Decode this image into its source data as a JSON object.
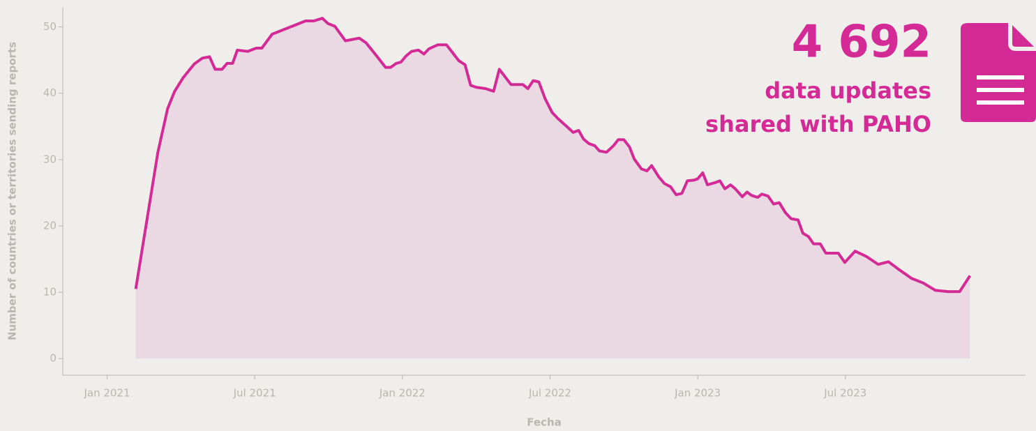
{
  "chart_data": {
    "type": "area",
    "y_label": "Number of countries or territories sending reports",
    "x_label": "Fecha",
    "annotations": [
      "4 692",
      "data updates",
      "shared with PAHO"
    ],
    "color": "#d42a96",
    "fill_color": "#ead8e2",
    "xlim": [
      2020.85,
      2024.11
    ],
    "ylim": [
      -2.5,
      53
    ],
    "xticks": [
      {
        "value": 2021.0,
        "label": "Jan 2021"
      },
      {
        "value": 2021.5,
        "label": "Jul 2021"
      },
      {
        "value": 2022.0,
        "label": "Jan 2022"
      },
      {
        "value": 2022.5,
        "label": "Jul 2022"
      },
      {
        "value": 2023.0,
        "label": "Jan 2023"
      },
      {
        "value": 2023.5,
        "label": "Jul 2023"
      }
    ],
    "yticks": [
      0,
      10,
      20,
      30,
      40,
      50
    ],
    "x": [
      2021.097,
      2021.172,
      2021.205,
      2021.229,
      2021.257,
      2021.295,
      2021.323,
      2021.347,
      2021.366,
      2021.389,
      2021.406,
      2021.425,
      2021.441,
      2021.476,
      2021.505,
      2021.524,
      2021.559,
      2021.672,
      2021.7,
      2021.729,
      2021.748,
      2021.771,
      2021.807,
      2021.83,
      2021.854,
      2021.877,
      2021.913,
      2021.943,
      2021.96,
      2021.979,
      2021.995,
      2022.012,
      2022.031,
      2022.054,
      2022.073,
      2022.09,
      2022.12,
      2022.149,
      2022.172,
      2022.191,
      2022.212,
      2022.231,
      2022.25,
      2022.281,
      2022.309,
      2022.328,
      2022.368,
      2022.408,
      2022.425,
      2022.443,
      2022.462,
      2022.483,
      2022.507,
      2022.526,
      2022.561,
      2022.578,
      2022.597,
      2022.613,
      2022.632,
      2022.651,
      2022.667,
      2022.691,
      2022.715,
      2022.731,
      2022.75,
      2022.769,
      2022.785,
      2022.809,
      2022.828,
      2022.844,
      2022.868,
      2022.887,
      2022.908,
      2022.927,
      2022.946,
      2022.965,
      2022.988,
      2023.0,
      2023.017,
      2023.033,
      2023.057,
      2023.075,
      2023.092,
      2023.111,
      2023.127,
      2023.151,
      2023.167,
      2023.182,
      2023.203,
      2023.217,
      2023.238,
      2023.257,
      2023.276,
      2023.297,
      2023.316,
      2023.34,
      2023.356,
      2023.375,
      2023.392,
      2023.415,
      2023.434,
      2023.476,
      2023.498,
      2023.533,
      2023.571,
      2023.611,
      2023.646,
      2023.682,
      2023.724,
      2023.764,
      2023.804,
      2023.847,
      2023.887,
      2023.922
    ],
    "values": [
      10.5,
      31.1,
      37.7,
      40.3,
      42.3,
      44.4,
      45.3,
      45.5,
      43.6,
      43.6,
      44.5,
      44.5,
      46.5,
      46.3,
      46.8,
      46.8,
      48.9,
      50.9,
      50.9,
      51.3,
      50.5,
      50.1,
      47.9,
      48.1,
      48.3,
      47.6,
      45.6,
      43.9,
      43.9,
      44.5,
      44.7,
      45.6,
      46.3,
      46.5,
      45.9,
      46.7,
      47.3,
      47.3,
      46.0,
      44.9,
      44.3,
      41.2,
      40.9,
      40.7,
      40.3,
      43.6,
      41.3,
      41.3,
      40.7,
      41.9,
      41.7,
      39.2,
      37.1,
      36.2,
      34.8,
      34.1,
      34.4,
      33.1,
      32.4,
      32.1,
      31.3,
      31.1,
      32.1,
      33.0,
      33.0,
      31.9,
      30.1,
      28.6,
      28.3,
      29.1,
      27.4,
      26.4,
      25.9,
      24.7,
      24.9,
      26.8,
      26.9,
      27.1,
      28.0,
      26.2,
      26.5,
      26.8,
      25.6,
      26.2,
      25.6,
      24.4,
      25.1,
      24.6,
      24.3,
      24.8,
      24.5,
      23.3,
      23.5,
      22.0,
      21.1,
      20.9,
      18.9,
      18.4,
      17.3,
      17.3,
      15.9,
      15.9,
      14.5,
      16.2,
      15.4,
      14.2,
      14.6,
      13.4,
      12.1,
      11.4,
      10.3,
      10.1,
      10.1,
      12.5
    ]
  }
}
